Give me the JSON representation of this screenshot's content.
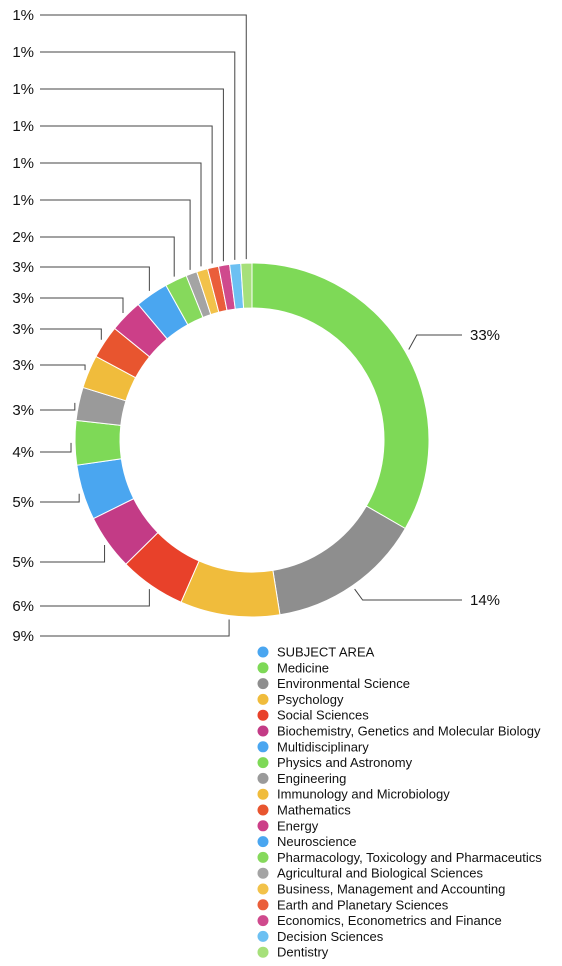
{
  "chart_data": {
    "type": "pie",
    "style": "donut",
    "labels": [
      "Medicine",
      "Environmental Science",
      "Psychology",
      "Social Sciences",
      "Biochemistry, Genetics and Molecular Biology",
      "Multidisciplinary",
      "Physics and Astronomy",
      "Engineering",
      "Immunology and Microbiology",
      "Mathematics",
      "Energy",
      "Neuroscience",
      "Pharmacology, Toxicology and Pharmaceutics",
      "Agricultural and Biological Sciences",
      "Business, Management and Accounting",
      "Earth and Planetary Sciences",
      "Economics, Econometrics and Finance",
      "Decision Sciences",
      "Dentistry"
    ],
    "values": [
      33,
      14,
      9,
      6,
      5,
      5,
      4,
      3,
      3,
      3,
      3,
      3,
      2,
      1,
      1,
      1,
      1,
      1,
      1
    ],
    "value_labels": [
      "33%",
      "14%",
      "9%",
      "6%",
      "5%",
      "5%",
      "4%",
      "3%",
      "3%",
      "3%",
      "3%",
      "3%",
      "2%",
      "1%",
      "1%",
      "1%",
      "1%",
      "1%",
      "1%"
    ],
    "colors": [
      "#7ed957",
      "#8e8e8e",
      "#f0bc3c",
      "#e8412a",
      "#c33b86",
      "#4aa6f0",
      "#7ed957",
      "#9a9a9a",
      "#f0bc3c",
      "#e8552f",
      "#cc3f88",
      "#4aa6f0",
      "#86d95c",
      "#a4a4a4",
      "#f2c24a",
      "#ea5e3a",
      "#cf4a8d",
      "#6cc0f2",
      "#a6e07a"
    ],
    "legend": {
      "position": "bottom-right",
      "entries": [
        {
          "label": "SUBJECT AREA",
          "color": "#4aa6f0"
        },
        {
          "label": "Medicine",
          "color": "#7ed957"
        },
        {
          "label": "Environmental Science",
          "color": "#8e8e8e"
        },
        {
          "label": "Psychology",
          "color": "#f0bc3c"
        },
        {
          "label": "Social Sciences",
          "color": "#e8412a"
        },
        {
          "label": "Biochemistry, Genetics and Molecular Biology",
          "color": "#c33b86"
        },
        {
          "label": "Multidisciplinary",
          "color": "#4aa6f0"
        },
        {
          "label": "Physics and Astronomy",
          "color": "#7ed957"
        },
        {
          "label": "Engineering",
          "color": "#9a9a9a"
        },
        {
          "label": "Immunology and Microbiology",
          "color": "#f0bc3c"
        },
        {
          "label": "Mathematics",
          "color": "#e8552f"
        },
        {
          "label": "Energy",
          "color": "#cc3f88"
        },
        {
          "label": "Neuroscience",
          "color": "#4aa6f0"
        },
        {
          "label": "Pharmacology, Toxicology and Pharmaceutics",
          "color": "#86d95c"
        },
        {
          "label": "Agricultural and Biological Sciences",
          "color": "#a4a4a4"
        },
        {
          "label": "Business, Management and Accounting",
          "color": "#f2c24a"
        },
        {
          "label": "Earth and Planetary Sciences",
          "color": "#ea5e3a"
        },
        {
          "label": "Economics, Econometrics and Finance",
          "color": "#cf4a8d"
        },
        {
          "label": "Decision Sciences",
          "color": "#6cc0f2"
        },
        {
          "label": "Dentistry",
          "color": "#a6e07a"
        }
      ]
    }
  }
}
